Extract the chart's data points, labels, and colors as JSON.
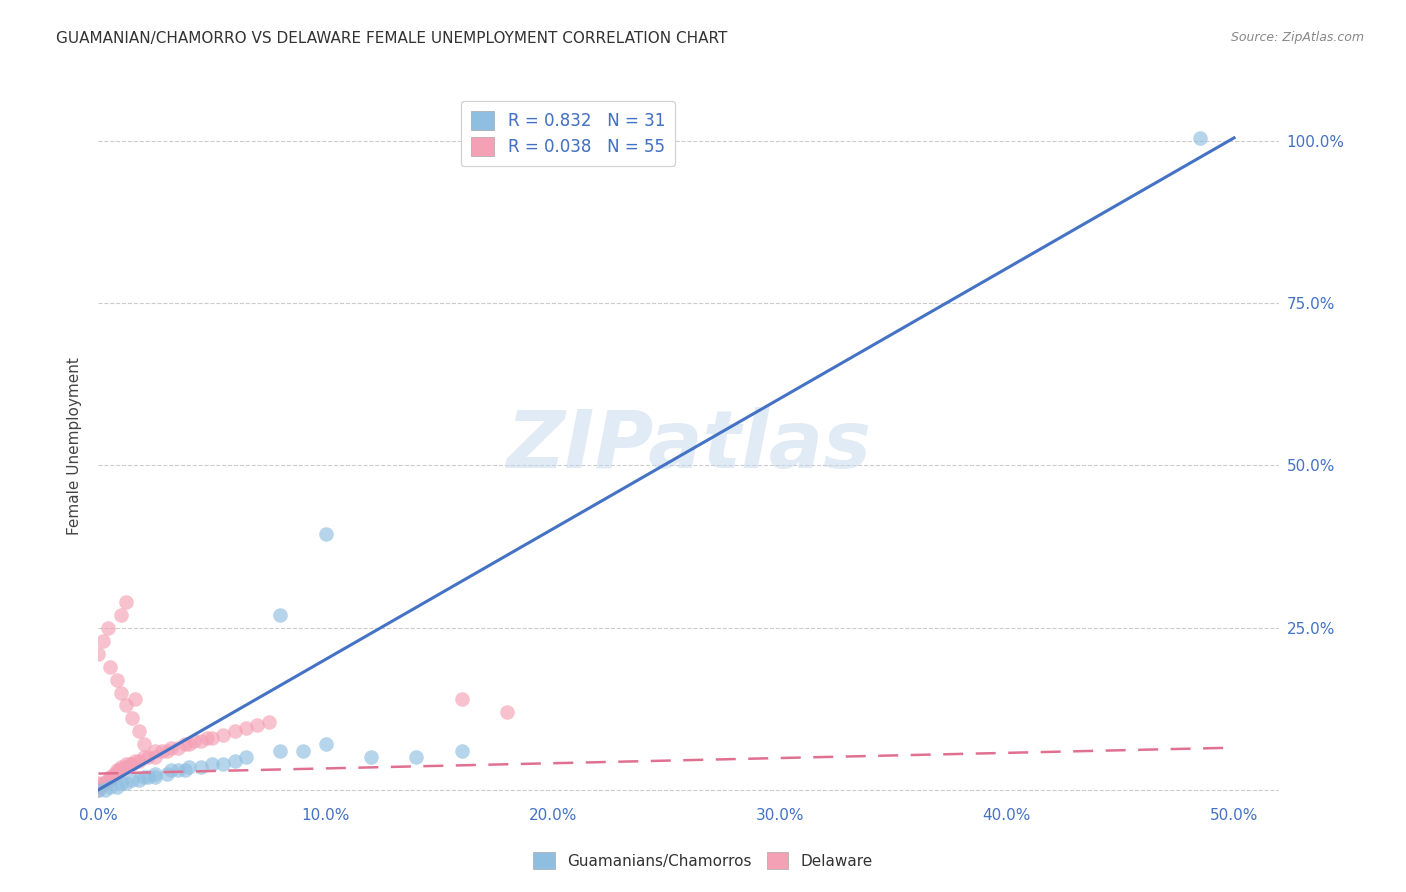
{
  "title": "GUAMANIAN/CHAMORRO VS DELAWARE FEMALE UNEMPLOYMENT CORRELATION CHART",
  "source": "Source: ZipAtlas.com",
  "ylabel": "Female Unemployment",
  "xlim": [
    0.0,
    0.52
  ],
  "ylim": [
    -0.02,
    1.08
  ],
  "xticks": [
    0.0,
    0.1,
    0.2,
    0.3,
    0.4,
    0.5
  ],
  "yticks": [
    0.0,
    0.25,
    0.5,
    0.75,
    1.0
  ],
  "ytick_right_labels": [
    "",
    "25.0%",
    "50.0%",
    "75.0%",
    "100.0%"
  ],
  "xtick_labels": [
    "0.0%",
    "10.0%",
    "20.0%",
    "30.0%",
    "40.0%",
    "50.0%"
  ],
  "legend_label1": "Guamanians/Chamorros",
  "legend_label2": "Delaware",
  "color_blue": "#8FBFE0",
  "color_pink": "#F4A0B5",
  "color_blue_line": "#4472C4",
  "color_pink_line": "#E07090",
  "background_color": "#FFFFFF",
  "watermark": "ZIPatlas",
  "grid_color": "#CCCCCC",
  "guamanian_x": [
    0.0,
    0.003,
    0.005,
    0.008,
    0.01,
    0.012,
    0.015,
    0.018,
    0.02,
    0.022,
    0.025,
    0.025,
    0.03,
    0.032,
    0.035,
    0.038,
    0.04,
    0.045,
    0.05,
    0.055,
    0.06,
    0.065,
    0.08,
    0.09,
    0.1,
    0.12,
    0.14,
    0.16,
    0.08,
    0.1,
    0.485
  ],
  "guamanian_y": [
    0.0,
    0.0,
    0.005,
    0.005,
    0.01,
    0.01,
    0.015,
    0.015,
    0.02,
    0.02,
    0.02,
    0.025,
    0.025,
    0.03,
    0.03,
    0.03,
    0.035,
    0.035,
    0.04,
    0.04,
    0.045,
    0.05,
    0.06,
    0.06,
    0.07,
    0.05,
    0.05,
    0.06,
    0.27,
    0.395,
    1.005
  ],
  "delaware_x": [
    0.0,
    0.0,
    0.0,
    0.002,
    0.003,
    0.004,
    0.005,
    0.005,
    0.006,
    0.007,
    0.008,
    0.008,
    0.009,
    0.01,
    0.01,
    0.012,
    0.012,
    0.014,
    0.015,
    0.016,
    0.018,
    0.02,
    0.022,
    0.025,
    0.025,
    0.028,
    0.03,
    0.032,
    0.035,
    0.038,
    0.04,
    0.042,
    0.045,
    0.048,
    0.05,
    0.055,
    0.06,
    0.065,
    0.07,
    0.075,
    0.005,
    0.008,
    0.01,
    0.012,
    0.015,
    0.018,
    0.02,
    0.0,
    0.002,
    0.004,
    0.01,
    0.012,
    0.016,
    0.16,
    0.18
  ],
  "delaware_y": [
    0.0,
    0.005,
    0.01,
    0.01,
    0.01,
    0.015,
    0.015,
    0.02,
    0.02,
    0.025,
    0.025,
    0.03,
    0.03,
    0.03,
    0.035,
    0.035,
    0.04,
    0.04,
    0.04,
    0.045,
    0.045,
    0.05,
    0.05,
    0.05,
    0.06,
    0.06,
    0.06,
    0.065,
    0.065,
    0.07,
    0.07,
    0.075,
    0.075,
    0.08,
    0.08,
    0.085,
    0.09,
    0.095,
    0.1,
    0.105,
    0.19,
    0.17,
    0.15,
    0.13,
    0.11,
    0.09,
    0.07,
    0.21,
    0.23,
    0.25,
    0.27,
    0.29,
    0.14,
    0.14,
    0.12
  ],
  "blue_trend_x": [
    0.0,
    0.5
  ],
  "blue_trend_y": [
    0.0,
    1.005
  ],
  "pink_trend_x": [
    0.0,
    0.5
  ],
  "pink_trend_y": [
    0.025,
    0.065
  ]
}
